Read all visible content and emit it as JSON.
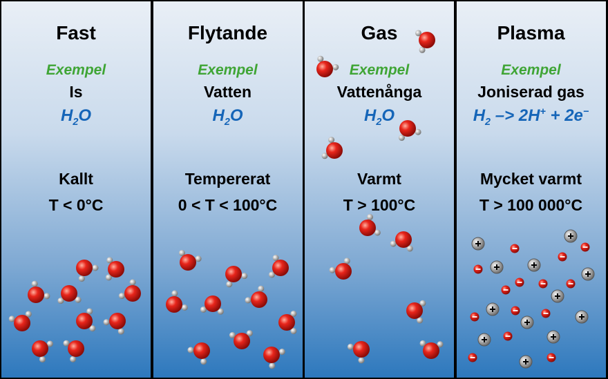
{
  "panels": [
    {
      "title": "Fast",
      "example_label": "Exempel",
      "example": "Is",
      "formula": [
        "H",
        "2",
        "O"
      ],
      "state": "Kallt",
      "temperature": "T < 0°C"
    },
    {
      "title": "Flytande",
      "example_label": "Exempel",
      "example": "Vatten",
      "formula": [
        "H",
        "2",
        "O"
      ],
      "state": "Tempererat",
      "temperature": "0 < T < 100°C"
    },
    {
      "title": "Gas",
      "example_label": "Exempel",
      "example": "Vattenånga",
      "formula": [
        "H",
        "2",
        "O"
      ],
      "state": "Varmt",
      "temperature": "T > 100°C"
    },
    {
      "title": "Plasma",
      "example_label": "Exempel",
      "example": "Joniserad gas",
      "formula": [
        "H",
        "2",
        " –> 2H",
        "+",
        " + 2e",
        "−"
      ],
      "state": "Mycket varmt",
      "temperature": "T > 100 000°C"
    }
  ]
}
